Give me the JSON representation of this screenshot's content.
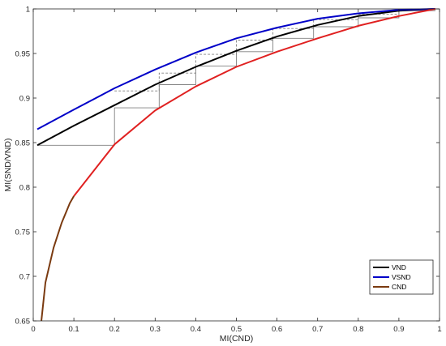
{
  "chart_data": {
    "type": "line",
    "title": "",
    "xlabel": "MI(CND)",
    "ylabel": "MI(SND/VND)",
    "xlim": [
      0,
      1
    ],
    "ylim": [
      0.65,
      1
    ],
    "grid": false,
    "legend_placement": "bottom-right",
    "x_ticks": [
      0,
      0.1,
      0.2,
      0.3,
      0.4,
      0.5,
      0.6,
      0.7,
      0.8,
      0.9,
      1
    ],
    "x_tick_labels": [
      "0",
      "0.1",
      "0.2",
      "0.3",
      "0.4",
      "0.5",
      "0.6",
      "0.7",
      "0.8",
      "0.9",
      "1"
    ],
    "y_ticks": [
      0.65,
      0.7,
      0.75,
      0.8,
      0.85,
      0.9,
      0.95,
      1
    ],
    "y_tick_labels": [
      "0.65",
      "0.7",
      "0.75",
      "0.8",
      "0.85",
      "0.9",
      "0.95",
      "1"
    ],
    "series": [
      {
        "name": "VND",
        "color": "#000000",
        "x": [
          0.01,
          0.1,
          0.2,
          0.3,
          0.4,
          0.5,
          0.6,
          0.7,
          0.8,
          0.9,
          0.99
        ],
        "y": [
          0.847,
          0.869,
          0.892,
          0.915,
          0.935,
          0.953,
          0.969,
          0.982,
          0.992,
          0.998,
          1.0
        ]
      },
      {
        "name": "VSND",
        "color": "#0000c8",
        "x": [
          0.01,
          0.1,
          0.2,
          0.3,
          0.4,
          0.5,
          0.6,
          0.7,
          0.8,
          0.9,
          0.99
        ],
        "y": [
          0.865,
          0.887,
          0.911,
          0.932,
          0.951,
          0.967,
          0.979,
          0.989,
          0.995,
          0.999,
          1.0
        ]
      },
      {
        "name": "CND",
        "color": "#7a3a10",
        "x": [
          0.02,
          0.03,
          0.05,
          0.07,
          0.09,
          0.1,
          0.2,
          0.3,
          0.4,
          0.5,
          0.6,
          0.7,
          0.8,
          0.9,
          0.99
        ],
        "y": [
          0.65,
          0.693,
          0.732,
          0.76,
          0.782,
          0.79,
          0.848,
          0.886,
          0.913,
          0.935,
          0.952,
          0.967,
          0.981,
          0.992,
          1.0
        ]
      }
    ],
    "cnd_highlight_color": "#e02020",
    "cnd_highlight_from_x": 0.1,
    "trajectory": {
      "color": "#808080",
      "points": [
        [
          0.01,
          0.847
        ],
        [
          0.2,
          0.847
        ],
        [
          0.2,
          0.889
        ],
        [
          0.31,
          0.889
        ],
        [
          0.31,
          0.915
        ],
        [
          0.4,
          0.915
        ],
        [
          0.4,
          0.936
        ],
        [
          0.5,
          0.936
        ],
        [
          0.5,
          0.952
        ],
        [
          0.59,
          0.952
        ],
        [
          0.59,
          0.967
        ],
        [
          0.69,
          0.967
        ],
        [
          0.69,
          0.98
        ],
        [
          0.8,
          0.98
        ],
        [
          0.8,
          0.99
        ],
        [
          0.9,
          0.99
        ],
        [
          0.9,
          0.998
        ],
        [
          0.99,
          0.998
        ]
      ]
    },
    "dashed_trajectory": {
      "color": "#808080",
      "points": [
        [
          0.2,
          0.908
        ],
        [
          0.31,
          0.908
        ],
        [
          0.31,
          0.928
        ],
        [
          0.4,
          0.928
        ],
        [
          0.4,
          0.949
        ],
        [
          0.5,
          0.949
        ],
        [
          0.5,
          0.965
        ],
        [
          0.59,
          0.965
        ],
        [
          0.59,
          0.978
        ],
        [
          0.69,
          0.978
        ],
        [
          0.69,
          0.988
        ],
        [
          0.8,
          0.988
        ],
        [
          0.8,
          0.994
        ],
        [
          0.9,
          0.994
        ],
        [
          0.9,
          0.999
        ],
        [
          0.99,
          0.999
        ]
      ]
    },
    "legend": [
      {
        "label": "VND",
        "color": "#000000"
      },
      {
        "label": "VSND",
        "color": "#0000c8"
      },
      {
        "label": "CND",
        "color": "#7a3a10"
      }
    ]
  }
}
